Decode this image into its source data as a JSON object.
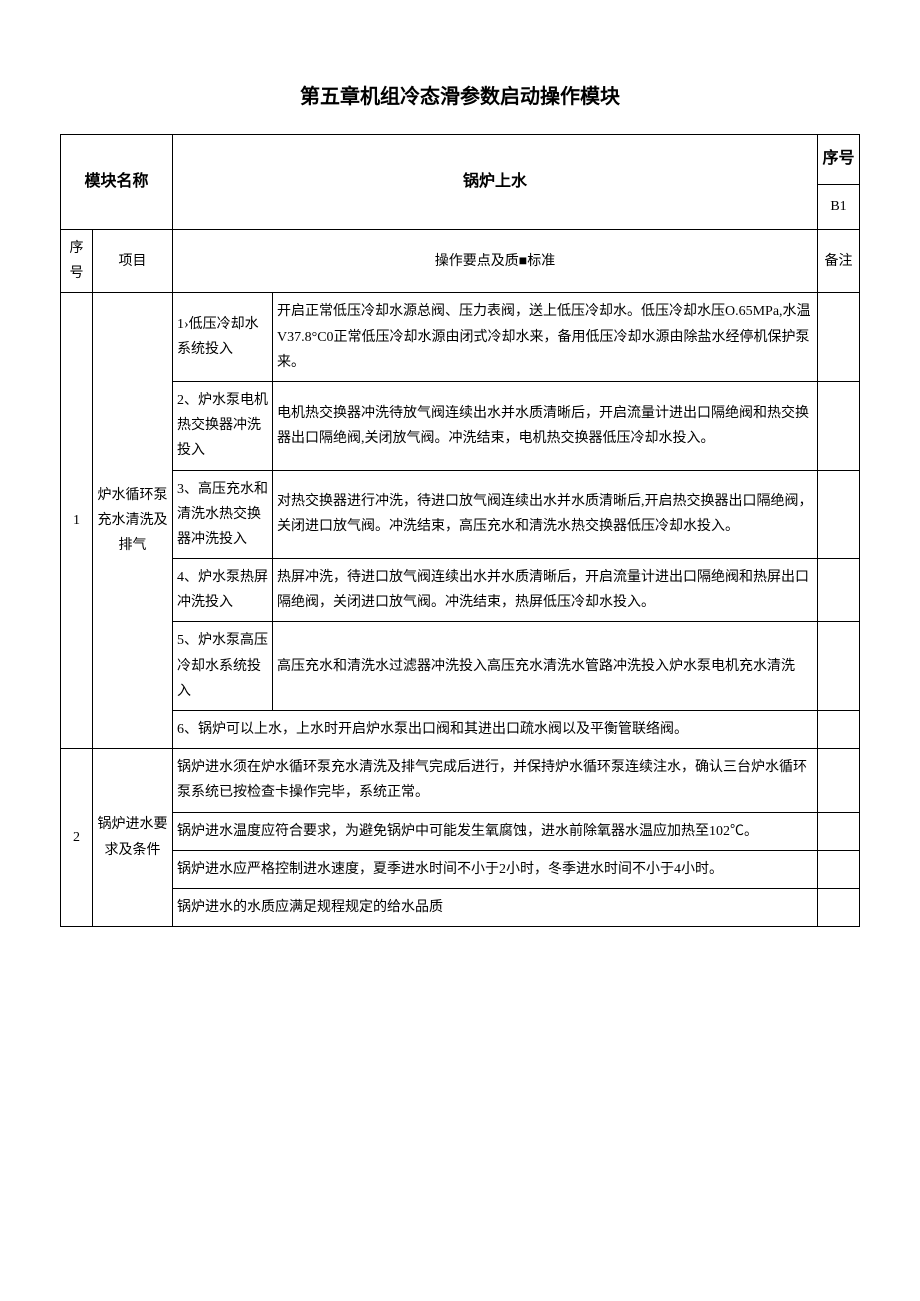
{
  "title": "第五章机组冷态滑参数启动操作模块",
  "header": {
    "module_label": "模块名称",
    "module_value": "锅炉上水",
    "serial_label": "序号",
    "serial_value": "B1",
    "col_seq": "序号",
    "col_item": "项目",
    "col_points": "操作要点及质■标准",
    "col_note": "备注"
  },
  "row1": {
    "seq": "1",
    "item": "炉水循环泵充水清洗及排气",
    "sub": {
      "a_label": "1›低压冷却水系统投入",
      "a_text": "开启正常低压冷却水源总阀、压力表阀，送上低压冷却水。低压冷却水压O.65MPa,水温V37.8°C0正常低压冷却水源由闭式冷却水来，备用低压冷却水源由除盐水经停机保护泵来。",
      "b_label": "2、炉水泵电机热交换器冲洗投入",
      "b_text": "电机热交换器冲洗待放气阀连续出水并水质清晰后，开启流量计进出口隔绝阀和热交换器出口隔绝阀,关闭放气阀。冲洗结束，电机热交换器低压冷却水投入。",
      "c_label": "3、高压充水和清洗水热交换器冲洗投入",
      "c_text": "对热交换器进行冲洗，待进口放气阀连续出水并水质清晰后,开启热交换器出口隔绝阀，关闭进口放气阀。冲洗结束，高压充水和清洗水热交换器低压冷却水投入。",
      "d_label": "4、炉水泵热屏冲洗投入",
      "d_text": "热屏冲洗，待进口放气阀连续出水并水质清晰后，开启流量计进出口隔绝阀和热屏出口隔绝阀，关闭进口放气阀。冲洗结束，热屏低压冷却水投入。",
      "e_label": "5、炉水泵高压冷却水系统投入",
      "e_text": "高压充水和清洗水过滤器冲洗投入高压充水清洗水管路冲洗投入炉水泵电机充水清洗",
      "f_text": "6、锅炉可以上水，上水时开启炉水泵出口阀和其进出口疏水阀以及平衡管联络阀。"
    }
  },
  "row2": {
    "seq": "2",
    "item": "锅炉进水要求及条件",
    "a": "锅炉进水须在炉水循环泵充水清洗及排气完成后进行，并保持炉水循环泵连续注水，确认三台炉水循环泵系统已按检查卡操作完毕，系统正常。",
    "b": "锅炉进水温度应符合要求，为避免锅炉中可能发生氧腐蚀，进水前除氧器水温应加热至102℃。",
    "c": "锅炉进水应严格控制进水速度，夏季进水时间不小于2小时，冬季进水时间不小于4小时。",
    "d": "锅炉进水的水质应满足规程规定的给水品质"
  }
}
